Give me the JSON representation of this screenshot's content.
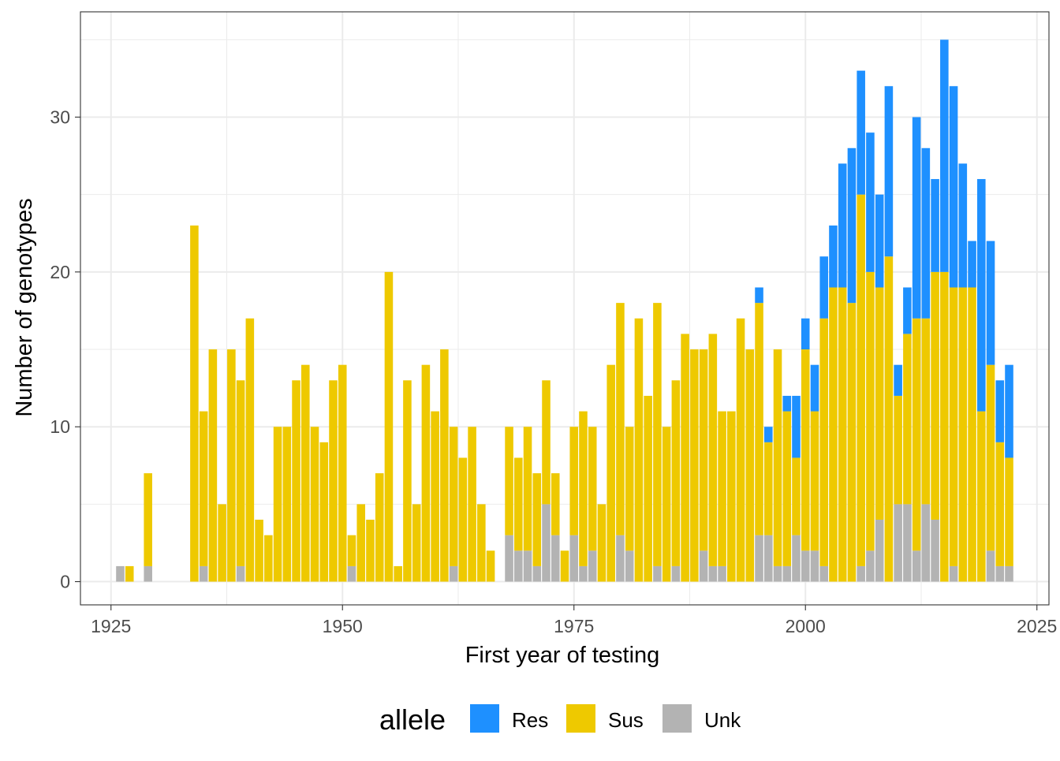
{
  "chart_data": {
    "type": "bar",
    "stacked": true,
    "xlabel": "First year of testing",
    "ylabel": "Number of genotypes",
    "xlim": [
      1921.7,
      2026.3
    ],
    "ylim": [
      -1.5,
      36.8
    ],
    "x_ticks": [
      1925,
      1950,
      1975,
      2000,
      2025
    ],
    "y_ticks": [
      0,
      10,
      20,
      30
    ],
    "grid": true,
    "legend": {
      "title": "allele",
      "position": "bottom"
    },
    "colors": {
      "Res": "#1E90FF",
      "Sus": "#EEC900",
      "Unk": "#B3B3B3"
    },
    "x": [
      1926,
      1927,
      1929,
      1934,
      1935,
      1936,
      1937,
      1938,
      1939,
      1940,
      1941,
      1942,
      1943,
      1944,
      1945,
      1946,
      1947,
      1948,
      1949,
      1950,
      1951,
      1952,
      1953,
      1954,
      1955,
      1956,
      1957,
      1958,
      1959,
      1960,
      1961,
      1962,
      1963,
      1964,
      1965,
      1966,
      1968,
      1969,
      1970,
      1971,
      1972,
      1973,
      1974,
      1975,
      1976,
      1977,
      1978,
      1979,
      1980,
      1981,
      1982,
      1983,
      1984,
      1985,
      1986,
      1987,
      1988,
      1989,
      1990,
      1991,
      1992,
      1993,
      1994,
      1995,
      1996,
      1997,
      1998,
      1999,
      2000,
      2001,
      2002,
      2003,
      2004,
      2005,
      2006,
      2007,
      2008,
      2009,
      2010,
      2011,
      2012,
      2013,
      2014,
      2015,
      2016,
      2017,
      2018,
      2019,
      2020,
      2021,
      2022
    ],
    "series": [
      {
        "name": "Unk",
        "values": [
          1,
          0,
          1,
          0,
          1,
          0,
          0,
          0,
          1,
          0,
          0,
          0,
          0,
          0,
          0,
          0,
          0,
          0,
          0,
          0,
          1,
          0,
          0,
          0,
          0,
          0,
          0,
          0,
          0,
          0,
          0,
          1,
          0,
          0,
          0,
          0,
          3,
          2,
          2,
          1,
          5,
          3,
          0,
          3,
          1,
          2,
          0,
          0,
          3,
          2,
          0,
          0,
          1,
          0,
          1,
          0,
          0,
          2,
          1,
          1,
          0,
          0,
          0,
          3,
          3,
          1,
          1,
          3,
          2,
          2,
          1,
          0,
          0,
          0,
          1,
          2,
          4,
          0,
          5,
          5,
          2,
          5,
          4,
          0,
          1,
          0,
          0,
          0,
          2,
          1,
          1
        ]
      },
      {
        "name": "Sus",
        "values": [
          0,
          1,
          6,
          23,
          10,
          15,
          5,
          15,
          12,
          17,
          4,
          3,
          10,
          10,
          13,
          14,
          10,
          9,
          13,
          14,
          2,
          5,
          4,
          7,
          20,
          1,
          13,
          5,
          14,
          11,
          15,
          9,
          8,
          10,
          5,
          2,
          7,
          6,
          8,
          6,
          8,
          4,
          2,
          7,
          10,
          8,
          5,
          14,
          15,
          8,
          17,
          12,
          17,
          10,
          12,
          16,
          15,
          13,
          15,
          10,
          11,
          17,
          15,
          15,
          6,
          14,
          10,
          5,
          13,
          9,
          16,
          19,
          19,
          18,
          24,
          18,
          15,
          21,
          7,
          11,
          15,
          12,
          16,
          20,
          18,
          19,
          19,
          11,
          12,
          8,
          7
        ]
      },
      {
        "name": "Res",
        "values": [
          0,
          0,
          0,
          0,
          0,
          0,
          0,
          0,
          0,
          0,
          0,
          0,
          0,
          0,
          0,
          0,
          0,
          0,
          0,
          0,
          0,
          0,
          0,
          0,
          0,
          0,
          0,
          0,
          0,
          0,
          0,
          0,
          0,
          0,
          0,
          0,
          0,
          0,
          0,
          0,
          0,
          0,
          0,
          0,
          0,
          0,
          0,
          0,
          0,
          0,
          0,
          0,
          0,
          0,
          0,
          0,
          0,
          0,
          0,
          0,
          0,
          0,
          0,
          1,
          1,
          0,
          1,
          4,
          2,
          3,
          4,
          4,
          8,
          10,
          8,
          9,
          6,
          11,
          2,
          3,
          13,
          11,
          6,
          15,
          13,
          8,
          3,
          15,
          8,
          4,
          6
        ]
      }
    ]
  }
}
